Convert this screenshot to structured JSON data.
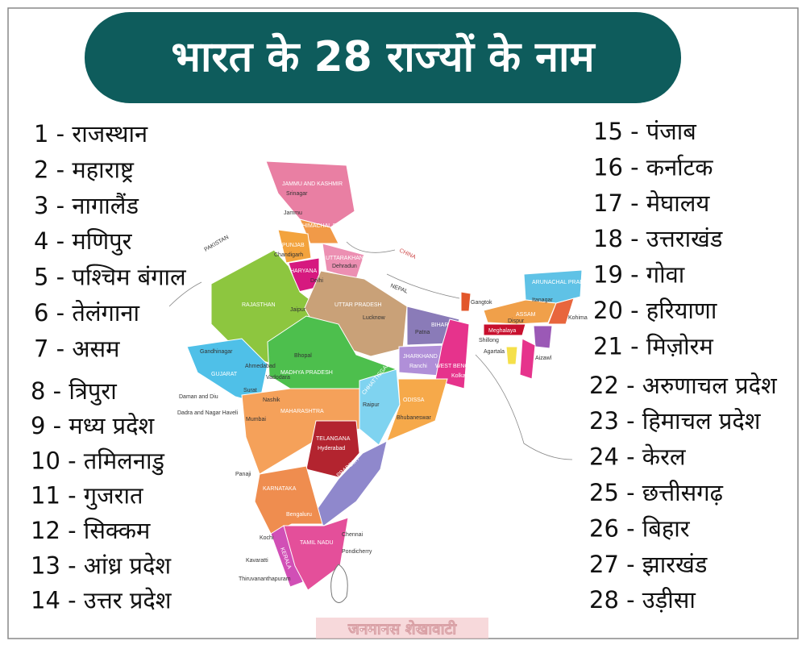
{
  "title": "भारत के 28 राज्यों के नाम",
  "states_left": [
    "1 - राजस्थान",
    "2 - महाराष्ट्र",
    "3 - नागालैंड",
    "4 - मणिपुर",
    "5 - पश्चिम बंगाल",
    "6 - तेलंगाना",
    "7 - असम",
    "8 - त्रिपुरा",
    "9 - मध्य प्रदेश",
    "10 - तमिलनाडु",
    "11 - गुजरात",
    "12 - सिक्कम",
    "13 - आंध्र प्रदेश",
    "14 - उत्तर प्रदेश"
  ],
  "states_right": [
    "15 - पंजाब",
    "16 - कर्नाटक",
    "17 - मेघालय",
    "18 - उत्तराखंड",
    "19 - गोवा",
    "20 - हरियाणा",
    "21 - मिज़ोरम",
    "22 - अरुणाचल प्रदेश",
    "23 - हिमाचल प्रदेश",
    "24 - केरल",
    "25 - छत्तीसगढ़",
    "26 - बिहार",
    "27 - झारखंड",
    "28 - उड़ीसा"
  ],
  "map_labels": [
    "PAKISTAN",
    "CHINA",
    "NEPAL",
    "JAMMU AND KASHMIR",
    "Srinagar",
    "Jammu",
    "HIMACHAL PRADESH",
    "PUNJAB",
    "Chandigarh",
    "HARYANA",
    "UTTARAKHAND",
    "Dehradun",
    "Delhi",
    "RAJASTHAN",
    "Jaipur",
    "UTTAR PRADESH",
    "Lucknow",
    "BIHAR",
    "Patna",
    "Gangtok",
    "ARUNACHAL PRADESH",
    "Itanagar",
    "ASSAM",
    "Dispur",
    "Kohima",
    "Meghalaya",
    "Shillong",
    "Agartala",
    "Aizawl",
    "GUJARAT",
    "Gandhinagar",
    "Ahmedabad",
    "Vadodara",
    "Surat",
    "Daman and Diu",
    "Dadra and Nagar Haveli",
    "MADHYA PRADESH",
    "Bhopal",
    "JHARKHAND",
    "Ranchi",
    "WEST BENGAL",
    "Kolkata",
    "CHHATTISGARH",
    "Raipur",
    "ODISSA",
    "Bhubaneswar",
    "MAHARASHTRA",
    "Mumbai",
    "Nashik",
    "TELANGANA",
    "Hyderabad",
    "ANDHRA PRADESH",
    "Panaji",
    "KARNATAKA",
    "Bengaluru",
    "TAMIL NADU",
    "Chennai",
    "Pondicherry",
    "Kochi",
    "KERALA",
    "Kavaratti",
    "Thiruvananthapuram"
  ],
  "watermark": "जनमानस शेखावाटी"
}
